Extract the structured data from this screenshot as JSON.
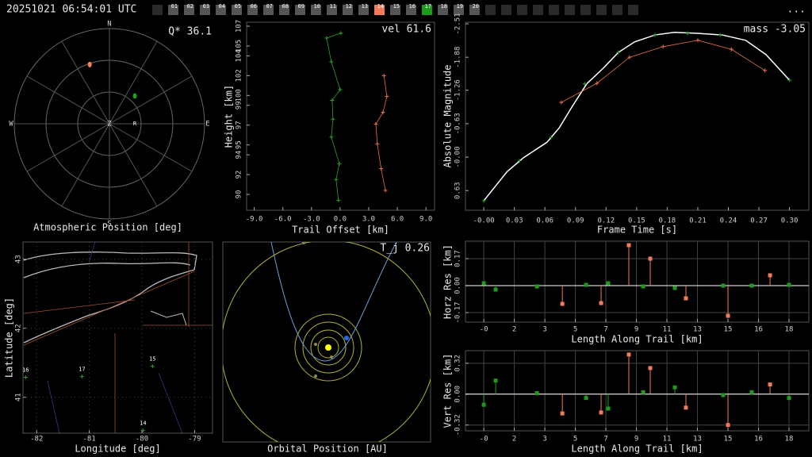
{
  "header": {
    "timestamp": "20251021 06:54:01 UTC",
    "menu": "...",
    "frames": [
      {
        "label": "01",
        "color": "#555555"
      },
      {
        "label": "02",
        "color": "#555555"
      },
      {
        "label": "03",
        "color": "#555555"
      },
      {
        "label": "04",
        "color": "#555555"
      },
      {
        "label": "05",
        "color": "#555555"
      },
      {
        "label": "06",
        "color": "#555555"
      },
      {
        "label": "07",
        "color": "#555555"
      },
      {
        "label": "08",
        "color": "#555555"
      },
      {
        "label": "09",
        "color": "#555555"
      },
      {
        "label": "10",
        "color": "#555555"
      },
      {
        "label": "11",
        "color": "#555555"
      },
      {
        "label": "12",
        "color": "#555555"
      },
      {
        "label": "13",
        "color": "#555555"
      },
      {
        "label": "14",
        "color": "#f07c5c"
      },
      {
        "label": "15",
        "color": "#555555"
      },
      {
        "label": "16",
        "color": "#555555"
      },
      {
        "label": "17",
        "color": "#1e9a1e"
      },
      {
        "label": "18",
        "color": "#555555"
      },
      {
        "label": "19",
        "color": "#555555"
      },
      {
        "label": "20",
        "color": "#555555"
      }
    ]
  },
  "chart_data": [
    {
      "type": "polar",
      "annotation": "Q* 36.1",
      "xlabel": "Atmospheric Position [deg]",
      "directions": [
        "N",
        "E",
        "S",
        "W"
      ],
      "center_label": "Z",
      "station_label": "R",
      "rlim": [
        0,
        90
      ],
      "rticks": [
        30,
        60,
        90
      ],
      "series": [
        {
          "color": "#ff8060",
          "az": [
            341.6
          ],
          "zen": [
            59
          ]
        },
        {
          "color": "#20a020",
          "az": [
            42.4
          ],
          "zen": [
            35.6
          ]
        }
      ]
    },
    {
      "type": "line",
      "annotation": "vel 61.6",
      "xlabel": "Trail Offset [km]",
      "ylabel": "Height [km]",
      "xlim": [
        -9.8,
        9.9
      ],
      "ylim": [
        88.4,
        107.4
      ],
      "grid": false,
      "xticks": [
        {
          "value": -9,
          "label": "-9.0"
        },
        {
          "value": -6,
          "label": "-6.0"
        },
        {
          "value": -3,
          "label": "-3.0"
        },
        {
          "value": 0,
          "label": "0.0"
        },
        {
          "value": 3,
          "label": "3.0"
        },
        {
          "value": 6,
          "label": "6.0"
        },
        {
          "value": 9,
          "label": "9.0"
        }
      ],
      "yticks": [
        90,
        92,
        94,
        95,
        97,
        99,
        100,
        102,
        104,
        105,
        107
      ],
      "series": [
        {
          "color": "#2ca02c",
          "marker": "+",
          "x": [
            0.08,
            -1.42,
            -0.92,
            0,
            -0.83,
            -0.75,
            -0.92,
            -0.08,
            -0.42,
            -0.17
          ],
          "values": [
            106.3,
            105.8,
            103.4,
            100.6,
            99.5,
            97.6,
            95.8,
            93.1,
            91.5,
            89.4
          ]
        },
        {
          "color": "#e8704a",
          "marker": "+",
          "x": [
            4.6,
            4.9,
            4.5,
            3.75,
            3.9,
            4.3,
            4.75
          ],
          "values": [
            102.0,
            99.9,
            98.3,
            97.1,
            95.1,
            92.6,
            90.4
          ]
        }
      ]
    },
    {
      "type": "line",
      "annotation": "mass -3.05",
      "xlabel": "Frame Time [s]",
      "ylabel": "Absolute Magnitude",
      "xlim": [
        -0.018,
        0.319
      ],
      "ylim": [
        1.0,
        -2.54
      ],
      "grid": false,
      "xticks": [
        {
          "value": 0,
          "label": "-0.00"
        },
        0.03,
        0.06,
        0.09,
        0.12,
        0.15,
        0.18,
        0.21,
        0.24,
        0.27,
        {
          "value": 0.3,
          "label": "0.30"
        }
      ],
      "yticks": [
        -2.51,
        -1.88,
        -1.26,
        -0.63,
        {
          "value": 0,
          "label": "-0.00"
        },
        0.63
      ],
      "series": [
        {
          "color": "#ffffff",
          "x": [
            0,
            0.023,
            0.039,
            0.062,
            0.074,
            0.086,
            0.101,
            0.117,
            0.132,
            0.148,
            0.168,
            0.187,
            0.21,
            0.234,
            0.257,
            0.277,
            0.3
          ],
          "values": [
            0.82,
            0.27,
            0.01,
            -0.28,
            -0.55,
            -0.93,
            -1.38,
            -1.67,
            -1.97,
            -2.17,
            -2.3,
            -2.35,
            -2.33,
            -2.3,
            -2.2,
            -1.93,
            -1.45
          ]
        },
        {
          "color": "#2ca02c",
          "marker": "+",
          "line": false,
          "x": [
            0,
            0.035,
            0.066,
            0.099,
            0.132,
            0.168,
            0.2,
            0.232,
            0.3
          ],
          "values": [
            0.82,
            0.07,
            -0.37,
            -1.38,
            -1.97,
            -2.3,
            -2.33,
            -2.3,
            -1.45
          ]
        },
        {
          "color": "#e8704a",
          "marker": "+",
          "x": [
            0.076,
            0.111,
            0.143,
            0.176,
            0.21,
            0.243,
            0.276
          ],
          "values": [
            -1.03,
            -1.39,
            -1.88,
            -2.08,
            -2.2,
            -2.03,
            -1.63
          ]
        }
      ]
    },
    {
      "type": "map",
      "xlabel": "Longitude [deg]",
      "ylabel": "Latitude [deg]",
      "xlim": [
        -82.26,
        -78.66
      ],
      "ylim": [
        40.48,
        43.25
      ],
      "grid": true,
      "xticks": [
        -82,
        -81,
        -80,
        -79
      ],
      "yticks": [
        41,
        42,
        43
      ],
      "stations": {
        "color": "#2ca02c",
        "labels": [
          "16",
          "17",
          "15",
          "14"
        ],
        "lon": [
          -82.21,
          -81.14,
          -79.8,
          -79.98
        ],
        "lat": [
          41.29,
          41.3,
          41.45,
          40.52
        ]
      }
    },
    {
      "type": "orbit",
      "annotation": "T_j 0.26",
      "xlabel": "Orbital Position [AU]"
    },
    {
      "type": "stem",
      "xlabel": "Length Along Trail [km]",
      "ylabel": "Horz Res [km]",
      "xlim": [
        -1.36,
        19.45
      ],
      "ylim": [
        -0.23,
        0.28
      ],
      "grid": true,
      "xticks": [
        {
          "value": -0.25,
          "label": "-0"
        },
        {
          "value": 1.6,
          "label": "2"
        },
        {
          "value": 3.45,
          "label": "3"
        },
        {
          "value": 5.3,
          "label": "5"
        },
        {
          "value": 7.15,
          "label": "7"
        },
        {
          "value": 9.0,
          "label": "9"
        },
        {
          "value": 10.85,
          "label": "11"
        },
        {
          "value": 12.7,
          "label": "13"
        },
        {
          "value": 14.55,
          "label": "15"
        },
        {
          "value": 16.4,
          "label": "16"
        },
        {
          "value": 18.25,
          "label": "18"
        }
      ],
      "yticks": [
        0.17,
        {
          "value": 0,
          "label": "0.00"
        },
        -0.17
      ],
      "series": [
        {
          "color": "#1e9a1e",
          "x": [
            -0.25,
            0.47,
            2.97,
            5.95,
            7.29,
            9.41,
            11.33,
            14.26,
            15.99,
            18.25
          ],
          "values": [
            0.015,
            -0.025,
            -0.005,
            0.005,
            0.015,
            -0.005,
            -0.015,
            0,
            0,
            0.005
          ]
        },
        {
          "color": "#f07c5c",
          "x": [
            4.51,
            6.86,
            8.54,
            9.84,
            12.0,
            14.55,
            17.1
          ],
          "values": [
            -0.115,
            -0.11,
            0.255,
            0.17,
            -0.08,
            -0.19,
            0.065
          ]
        }
      ]
    },
    {
      "type": "stem",
      "xlabel": "Length Along Trail [km]",
      "ylabel": "Vert Res [km]",
      "xlim": [
        -1.36,
        19.45
      ],
      "ylim": [
        -0.38,
        0.45
      ],
      "grid": true,
      "xticks": [
        {
          "value": -0.25,
          "label": "-0"
        },
        {
          "value": 1.6,
          "label": "2"
        },
        {
          "value": 3.45,
          "label": "3"
        },
        {
          "value": 5.3,
          "label": "5"
        },
        {
          "value": 7.15,
          "label": "7"
        },
        {
          "value": 9.0,
          "label": "9"
        },
        {
          "value": 10.85,
          "label": "11"
        },
        {
          "value": 12.7,
          "label": "13"
        },
        {
          "value": 14.55,
          "label": "15"
        },
        {
          "value": 16.4,
          "label": "16"
        },
        {
          "value": 18.25,
          "label": "18"
        }
      ],
      "yticks": [
        0.32,
        {
          "value": 0,
          "label": "0.00"
        },
        -0.32
      ],
      "series": [
        {
          "color": "#1e9a1e",
          "x": [
            -0.25,
            0.47,
            2.97,
            5.95,
            7.29,
            9.41,
            11.33,
            14.26,
            15.99,
            18.25
          ],
          "values": [
            -0.11,
            0.14,
            0.01,
            -0.04,
            -0.15,
            0.02,
            0.07,
            -0.01,
            0.02,
            -0.04
          ]
        },
        {
          "color": "#f07c5c",
          "x": [
            4.51,
            6.86,
            8.54,
            9.84,
            12.0,
            14.55,
            17.1
          ],
          "values": [
            -0.2,
            -0.19,
            0.41,
            0.27,
            -0.14,
            -0.32,
            0.1
          ]
        }
      ]
    }
  ]
}
